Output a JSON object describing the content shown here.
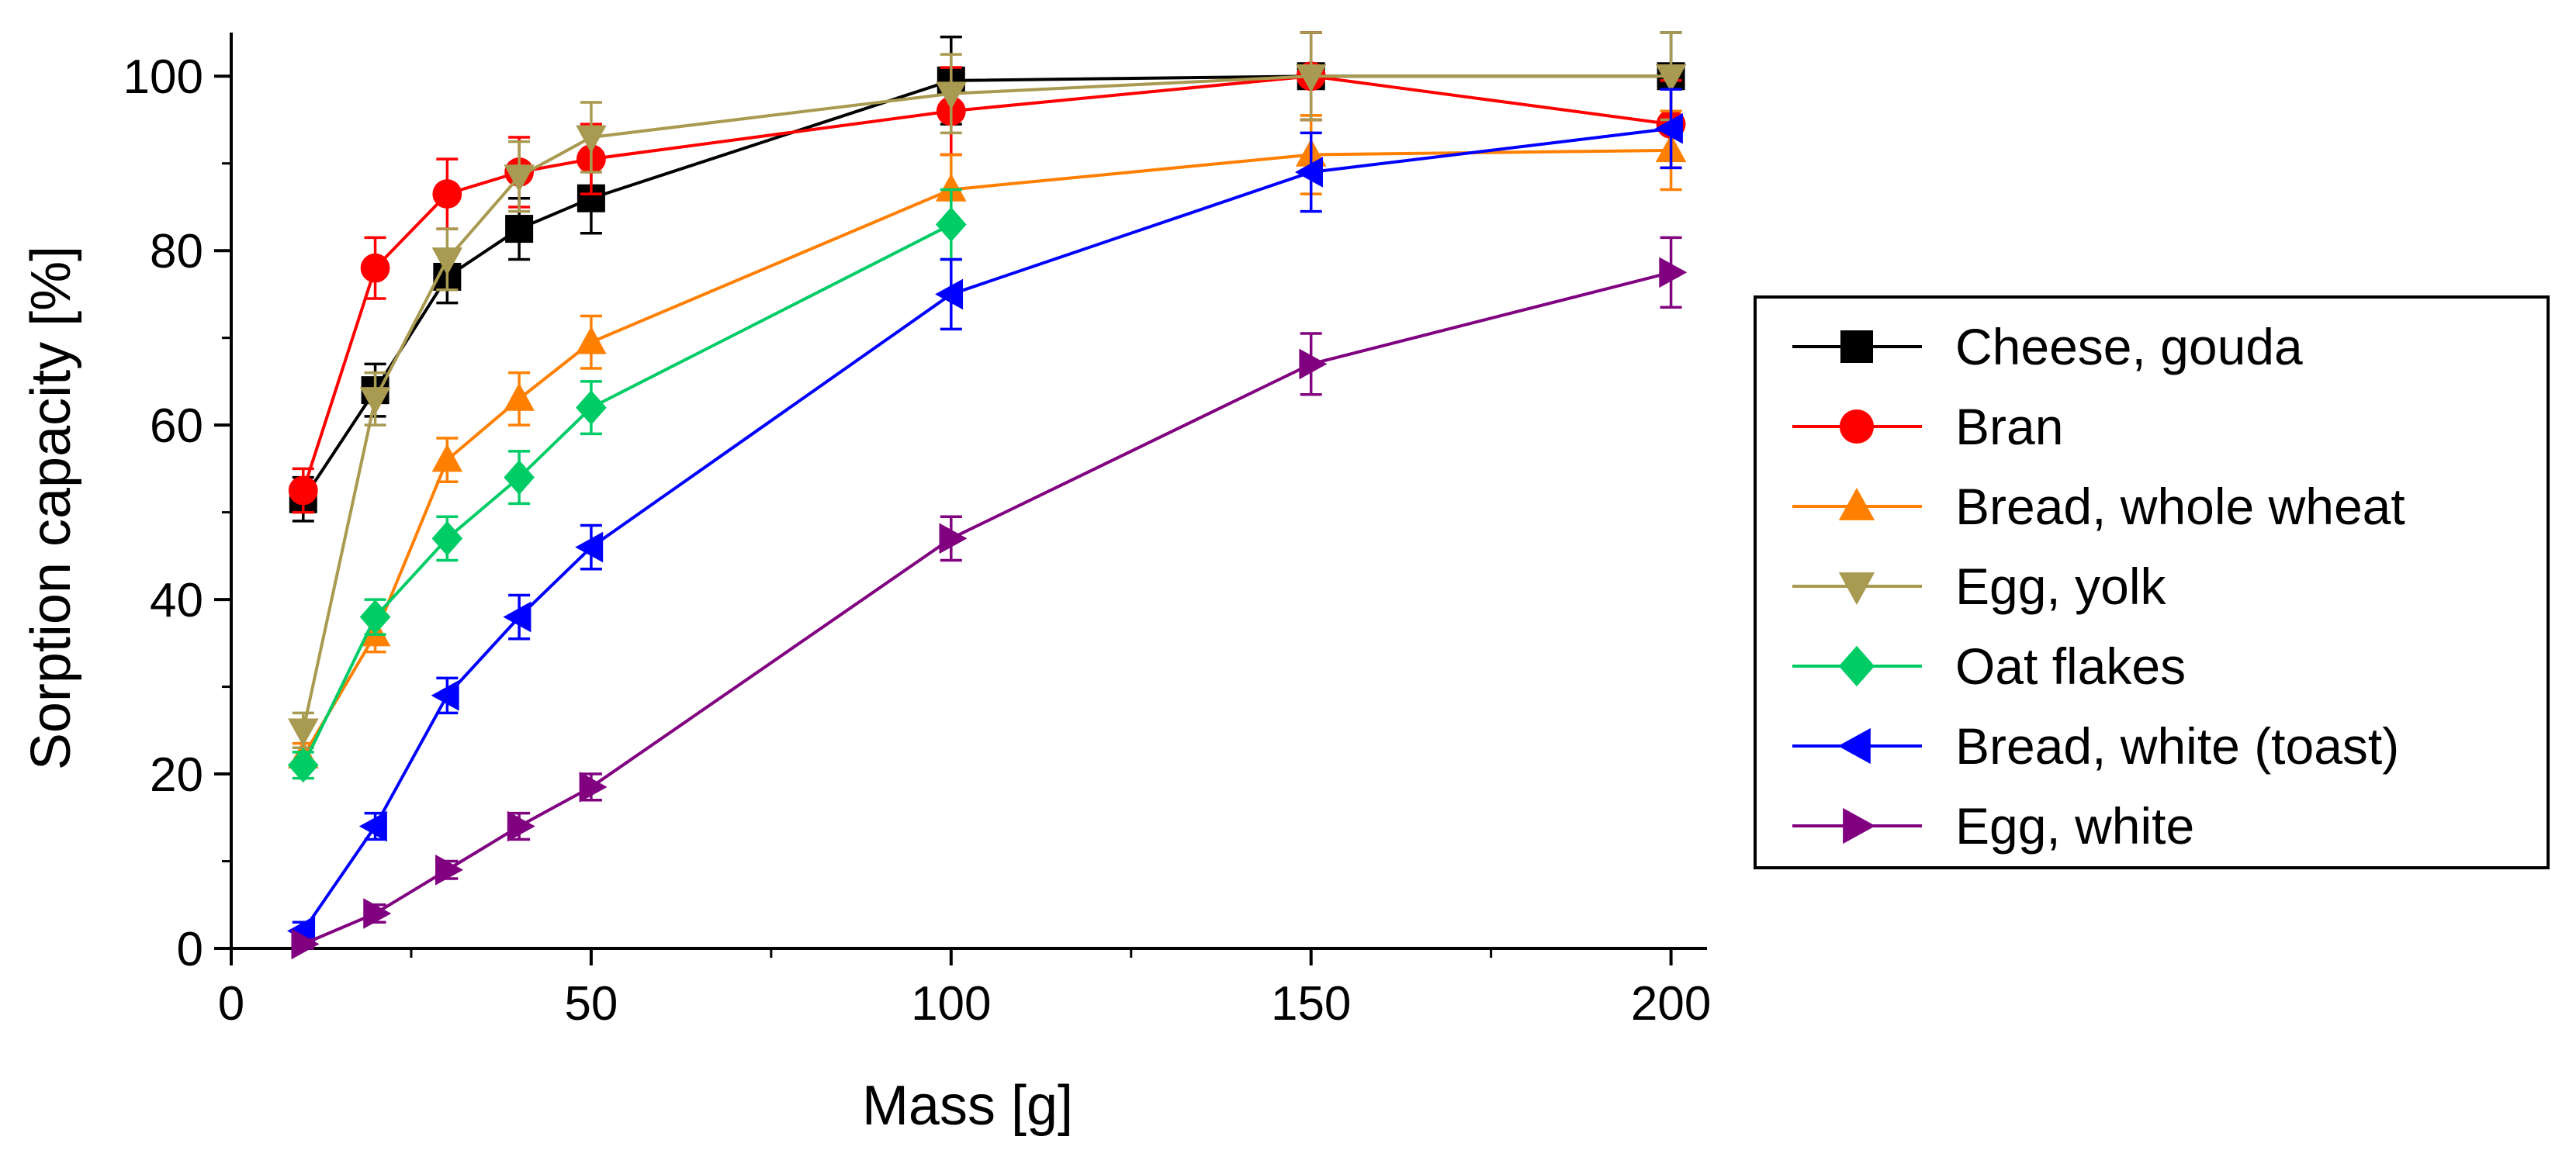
{
  "chart_data": {
    "type": "line",
    "title": "",
    "xlabel": "Mass [g]",
    "ylabel": "Sorption capacity [%]",
    "xlim": [
      0,
      205
    ],
    "ylim": [
      0,
      105
    ],
    "xticks": [
      0,
      50,
      100,
      150,
      200
    ],
    "yticks": [
      0,
      20,
      40,
      60,
      80,
      100
    ],
    "x_tick_labels": [
      "0",
      "50",
      "100",
      "150",
      "200"
    ],
    "y_tick_labels": [
      "0",
      "20",
      "40",
      "60",
      "80",
      "100"
    ],
    "x": [
      10,
      20,
      30,
      40,
      50,
      100,
      150,
      200
    ],
    "grid": false,
    "legend_position": "right",
    "series": [
      {
        "name": "Cheese, gouda",
        "color": "#000000",
        "marker": "square",
        "values": [
          51.5,
          64,
          77,
          82.5,
          86,
          99.5,
          100,
          100
        ],
        "errors": [
          2.5,
          3,
          3,
          3.5,
          4,
          5,
          5,
          5
        ]
      },
      {
        "name": "Bran",
        "color": "#ff0000",
        "marker": "circle",
        "values": [
          52.5,
          78,
          86.5,
          89,
          90.5,
          96,
          100,
          94.5
        ],
        "errors": [
          2.5,
          3.5,
          4,
          4,
          4,
          5,
          5,
          5
        ]
      },
      {
        "name": "Bread, whole wheat",
        "color": "#ff7f00",
        "marker": "triangle-up",
        "values": [
          22,
          36,
          56,
          63,
          69.5,
          87,
          91,
          91.5
        ],
        "errors": [
          1.5,
          2,
          2.5,
          3,
          3,
          4,
          4.5,
          4.5
        ]
      },
      {
        "name": "Egg, yolk",
        "color": "#a89a50",
        "marker": "triangle-down",
        "values": [
          25,
          63,
          79,
          88.5,
          93,
          98,
          100,
          100
        ],
        "errors": [
          2,
          3,
          3.5,
          4,
          4,
          4.5,
          5,
          5
        ]
      },
      {
        "name": "Oat flakes",
        "color": "#00cc66",
        "marker": "diamond",
        "values": [
          21,
          38,
          47,
          54,
          62,
          83,
          null,
          null
        ],
        "errors": [
          1.5,
          2,
          2.5,
          3,
          3,
          4,
          null,
          null
        ]
      },
      {
        "name": "Bread, white (toast)",
        "color": "#0000ff",
        "marker": "triangle-left",
        "values": [
          2,
          14,
          29,
          38,
          46,
          75,
          89,
          94
        ],
        "errors": [
          1,
          1.5,
          2,
          2.5,
          2.5,
          4,
          4.5,
          4.5
        ]
      },
      {
        "name": "Egg, white",
        "color": "#800080",
        "marker": "triangle-right",
        "values": [
          0.5,
          4,
          9,
          14,
          18.5,
          47,
          67,
          77.5
        ],
        "errors": [
          0.5,
          1,
          1,
          1.5,
          1.5,
          2.5,
          3.5,
          4
        ]
      }
    ]
  }
}
